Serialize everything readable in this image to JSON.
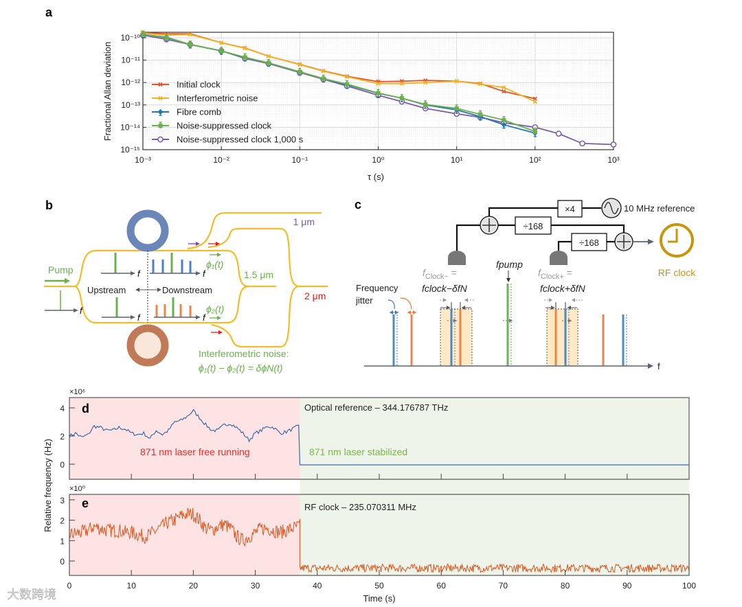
{
  "figure": {
    "panel_labels": {
      "a": "a",
      "b": "b",
      "c": "c",
      "d": "d",
      "e": "e"
    },
    "colors": {
      "initial": "#e0522a",
      "interferometric": "#f5b21e",
      "fibre": "#1f78b4",
      "suppressed": "#6ab04c",
      "suppressed1000": "#7d5ba6",
      "trace_d": "#3b6aa8",
      "trace_e": "#d9581f",
      "free_bg": "#fde3e3",
      "stab_bg": "#eef4ea",
      "free_text": "#e0302a",
      "stab_text": "#7ab648",
      "gold": "#c8960a"
    }
  },
  "chart_data": [
    {
      "type": "line",
      "panel": "a",
      "xlabel": "τ (s)",
      "ylabel": "Fractional Allan deviation",
      "xscale": "log",
      "yscale": "log",
      "xlim": [
        0.001,
        1000
      ],
      "ylim": [
        1e-15,
        1.8e-10
      ],
      "xtick_labels": [
        "10⁻³",
        "10⁻²",
        "10⁻¹",
        "10⁰",
        "10¹",
        "10²",
        "10³"
      ],
      "ytick_labels": [
        "10⁻¹⁰",
        "10⁻¹¹",
        "10⁻¹²",
        "10⁻¹³",
        "10⁻¹⁴",
        "10⁻¹⁵"
      ],
      "grid": true,
      "legend_position": "bottom-left",
      "series": [
        {
          "name": "Initial clock",
          "color_key": "initial",
          "marker": "x",
          "x": [
            0.001,
            0.002,
            0.004,
            0.01,
            0.02,
            0.04,
            0.1,
            0.2,
            0.4,
            1,
            2,
            4,
            10,
            20,
            40,
            100
          ],
          "y": [
            1.7e-10,
            1.5e-10,
            1.5e-10,
            6e-11,
            3.5e-11,
            1.5e-11,
            6.5e-12,
            3.3e-12,
            1.9e-12,
            1.1e-12,
            1.15e-12,
            1.25e-12,
            1.15e-12,
            9e-13,
            4e-13,
            1.9e-13
          ]
        },
        {
          "name": "Interferometric noise",
          "color_key": "interferometric",
          "marker": "x",
          "x": [
            0.001,
            0.002,
            0.004,
            0.01,
            0.02,
            0.04,
            0.1,
            0.2,
            0.4,
            1,
            2,
            4,
            10,
            20,
            40,
            100
          ],
          "y": [
            1.6e-10,
            1.3e-10,
            1.4e-10,
            6e-11,
            3.4e-11,
            1.5e-11,
            6.3e-12,
            3.2e-12,
            1.8e-12,
            9e-13,
            9e-13,
            1e-12,
            1.15e-12,
            8.5e-13,
            6e-13,
            1.4e-13
          ]
        },
        {
          "name": "Fibre comb",
          "color_key": "fibre",
          "marker": "dot-errorbar",
          "x": [
            0.001,
            0.002,
            0.004,
            0.01,
            0.02,
            0.04,
            0.1,
            0.2,
            0.4,
            1,
            2,
            4,
            10,
            20,
            40,
            100
          ],
          "y": [
            1.4e-10,
            1.05e-10,
            5e-11,
            2.6e-11,
            1.3e-11,
            7.5e-12,
            3e-12,
            1.5e-12,
            8e-13,
            3.3e-13,
            2e-13,
            1e-13,
            6e-14,
            3e-14,
            1.3e-14,
            5.5e-15
          ]
        },
        {
          "name": "Noise-suppressed clock",
          "color_key": "suppressed",
          "marker": "square-errorbar",
          "x": [
            0.001,
            0.002,
            0.004,
            0.01,
            0.02,
            0.04,
            0.1,
            0.2,
            0.4,
            1,
            2,
            4,
            10,
            20,
            40,
            100
          ],
          "y": [
            1.4e-10,
            1e-10,
            5e-11,
            2.6e-11,
            1.35e-11,
            7.5e-12,
            3e-12,
            1.5e-12,
            8.5e-13,
            3.4e-13,
            2e-13,
            1.05e-13,
            7e-14,
            3.8e-14,
            2.1e-14,
            6.5e-15
          ]
        },
        {
          "name": "Noise-suppressed clock 1,000 s",
          "color_key": "suppressed1000",
          "marker": "circle",
          "x": [
            0.001,
            0.002,
            0.004,
            0.01,
            0.02,
            0.04,
            0.1,
            0.2,
            0.4,
            1,
            2,
            4,
            10,
            20,
            40,
            100,
            200,
            400,
            1000
          ],
          "y": [
            1.3e-10,
            8.5e-11,
            5e-11,
            2.6e-11,
            1.2e-11,
            7e-12,
            2.8e-12,
            1.4e-12,
            7e-13,
            2.7e-13,
            1.4e-13,
            7e-14,
            4e-14,
            2.8e-14,
            1.6e-14,
            1e-14,
            5.2e-15,
            1.9e-15,
            1.7e-15
          ]
        }
      ]
    },
    {
      "type": "line",
      "panel": "d",
      "title": "Optical reference – 344.176787 THz",
      "multiplier": "×10⁶",
      "ylim": [
        -1,
        4.5
      ],
      "xlim": [
        0,
        100
      ],
      "ytick_labels": [
        "0",
        "2",
        "4"
      ],
      "ytick_values": [
        0,
        2,
        4
      ],
      "switch_time": 37.2,
      "free_label": "871 nm laser free running",
      "stab_label": "871 nm laser stabilized",
      "free_values_per_second": [
        2.0,
        2.2,
        1.9,
        2.1,
        2.7,
        2.6,
        2.4,
        2.4,
        2.6,
        2.5,
        2.2,
        2.1,
        2.2,
        1.8,
        2.4,
        2.1,
        2.4,
        3.0,
        3.1,
        3.4,
        3.8,
        3.3,
        2.8,
        2.4,
        2.4,
        2.8,
        2.9,
        2.6,
        2.2,
        1.7,
        2.2,
        2.4,
        2.7,
        2.6,
        2.2,
        2.3,
        2.5,
        2.7
      ],
      "stabilized_value": -0.05
    },
    {
      "type": "line",
      "panel": "e",
      "title": "RF clock – 235.070311 MHz",
      "multiplier": "×10⁰",
      "ylim": [
        -0.75,
        3.25
      ],
      "xlim": [
        0,
        100
      ],
      "ytick_labels": [
        "0",
        "1",
        "2",
        "3"
      ],
      "ytick_values": [
        0,
        1,
        2,
        3
      ],
      "switch_time": 37.2,
      "free_trend_per_second": [
        1.3,
        1.35,
        1.4,
        1.5,
        1.7,
        1.6,
        1.5,
        1.5,
        1.5,
        1.4,
        1.4,
        1.3,
        1.2,
        1.3,
        1.5,
        1.7,
        1.9,
        2.0,
        2.2,
        2.3,
        2.3,
        2.0,
        1.6,
        1.5,
        1.7,
        1.8,
        1.6,
        1.2,
        1.0,
        1.2,
        1.4,
        1.6,
        1.6,
        1.5,
        1.4,
        1.5,
        1.6,
        1.7
      ],
      "free_noise_amplitude": 0.35,
      "stabilized_mean": -0.35,
      "stabilized_noise_amplitude": 0.2,
      "xlabel": "Time (s)",
      "xtick_labels": [
        "0",
        "10",
        "20",
        "30",
        "40",
        "50",
        "60",
        "70",
        "80",
        "90",
        "100"
      ]
    }
  ],
  "shared_ylabel": "Relative frequency (Hz)",
  "panel_b": {
    "pump": "Pump",
    "upstream": "Upstream",
    "downstream": "Downstream",
    "f": "f",
    "phi1": "ϕ₁(t)",
    "phi2": "ϕ₂(t)",
    "wl_1um": "1 μm",
    "wl_15um": "1.5 μm",
    "wl_2um": "2 μm",
    "noise_title": "Interferometric noise:",
    "noise_formula": "ϕ₁(t) − ϕ₂(t) = δϕN(t)"
  },
  "panel_c": {
    "x4": "×4",
    "div1": "÷168",
    "div2": "÷168",
    "reference": "10 MHz reference",
    "rf_clock": "RF clock",
    "freq_jitter_1": "Frequency",
    "freq_jitter_2": "jitter",
    "fclock_minus_a": "f",
    "fclock_minus_sub": "Clock−",
    "fclock_minus_eq": " =",
    "fclock_minus_expr": "fclock−δfN",
    "fpump": "fpump",
    "fclock_plus_a": "f",
    "fclock_plus_sub": "Clock+",
    "fclock_plus_eq": " =",
    "fclock_plus_expr": "fclock+δfN",
    "f_axis": "f"
  },
  "watermark": "大数跨境"
}
